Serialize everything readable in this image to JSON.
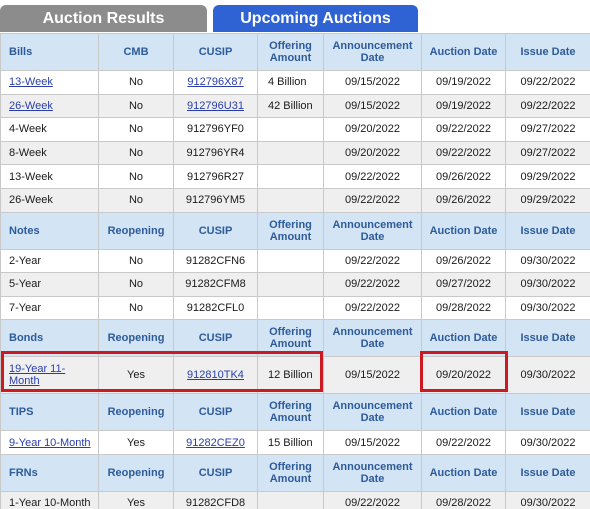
{
  "tabs": {
    "results": "Auction Results",
    "upcoming": "Upcoming Auctions"
  },
  "sections": [
    {
      "header": [
        "Bills",
        "CMB",
        "CUSIP",
        "Offering Amount",
        "Announcement Date",
        "Auction Date",
        "Issue Date"
      ],
      "rows": [
        {
          "term": "13-Week",
          "flag": "No",
          "cusip": "912796X87",
          "amount": "4 Billion",
          "announcement": "09/15/2022",
          "auction": "09/19/2022",
          "issue": "09/22/2022",
          "linked": true
        },
        {
          "term": "26-Week",
          "flag": "No",
          "cusip": "912796U31",
          "amount": "42 Billion",
          "announcement": "09/15/2022",
          "auction": "09/19/2022",
          "issue": "09/22/2022",
          "linked": true
        },
        {
          "term": "4-Week",
          "flag": "No",
          "cusip": "912796YF0",
          "amount": "",
          "announcement": "09/20/2022",
          "auction": "09/22/2022",
          "issue": "09/27/2022",
          "linked": false
        },
        {
          "term": "8-Week",
          "flag": "No",
          "cusip": "912796YR4",
          "amount": "",
          "announcement": "09/20/2022",
          "auction": "09/22/2022",
          "issue": "09/27/2022",
          "linked": false
        },
        {
          "term": "13-Week",
          "flag": "No",
          "cusip": "912796R27",
          "amount": "",
          "announcement": "09/22/2022",
          "auction": "09/26/2022",
          "issue": "09/29/2022",
          "linked": false
        },
        {
          "term": "26-Week",
          "flag": "No",
          "cusip": "912796YM5",
          "amount": "",
          "announcement": "09/22/2022",
          "auction": "09/26/2022",
          "issue": "09/29/2022",
          "linked": false
        }
      ]
    },
    {
      "header": [
        "Notes",
        "Reopening",
        "CUSIP",
        "Offering Amount",
        "Announcement Date",
        "Auction Date",
        "Issue Date"
      ],
      "rows": [
        {
          "term": "2-Year",
          "flag": "No",
          "cusip": "91282CFN6",
          "amount": "",
          "announcement": "09/22/2022",
          "auction": "09/26/2022",
          "issue": "09/30/2022",
          "linked": false
        },
        {
          "term": "5-Year",
          "flag": "No",
          "cusip": "91282CFM8",
          "amount": "",
          "announcement": "09/22/2022",
          "auction": "09/27/2022",
          "issue": "09/30/2022",
          "linked": false
        },
        {
          "term": "7-Year",
          "flag": "No",
          "cusip": "91282CFL0",
          "amount": "",
          "announcement": "09/22/2022",
          "auction": "09/28/2022",
          "issue": "09/30/2022",
          "linked": false
        }
      ]
    },
    {
      "header": [
        "Bonds",
        "Reopening",
        "CUSIP",
        "Offering Amount",
        "Announcement Date",
        "Auction Date",
        "Issue Date"
      ],
      "rows": [
        {
          "term": "19-Year 11-Month",
          "flag": "Yes",
          "cusip": "912810TK4",
          "amount": "12 Billion",
          "announcement": "09/15/2022",
          "auction": "09/20/2022",
          "issue": "09/30/2022",
          "linked": true,
          "tall": true
        }
      ]
    },
    {
      "header": [
        "TIPS",
        "Reopening",
        "CUSIP",
        "Offering Amount",
        "Announcement Date",
        "Auction Date",
        "Issue Date"
      ],
      "rows": [
        {
          "term": "9-Year 10-Month",
          "flag": "Yes",
          "cusip": "91282CEZ0",
          "amount": "15 Billion",
          "announcement": "09/15/2022",
          "auction": "09/22/2022",
          "issue": "09/30/2022",
          "linked": true
        }
      ]
    },
    {
      "header": [
        "FRNs",
        "Reopening",
        "CUSIP",
        "Offering Amount",
        "Announcement Date",
        "Auction Date",
        "Issue Date"
      ],
      "rows": [
        {
          "term": "1-Year 10-Month",
          "flag": "Yes",
          "cusip": "91282CFD8",
          "amount": "",
          "announcement": "09/22/2022",
          "auction": "09/28/2022",
          "issue": "09/30/2022",
          "linked": false
        }
      ]
    }
  ]
}
